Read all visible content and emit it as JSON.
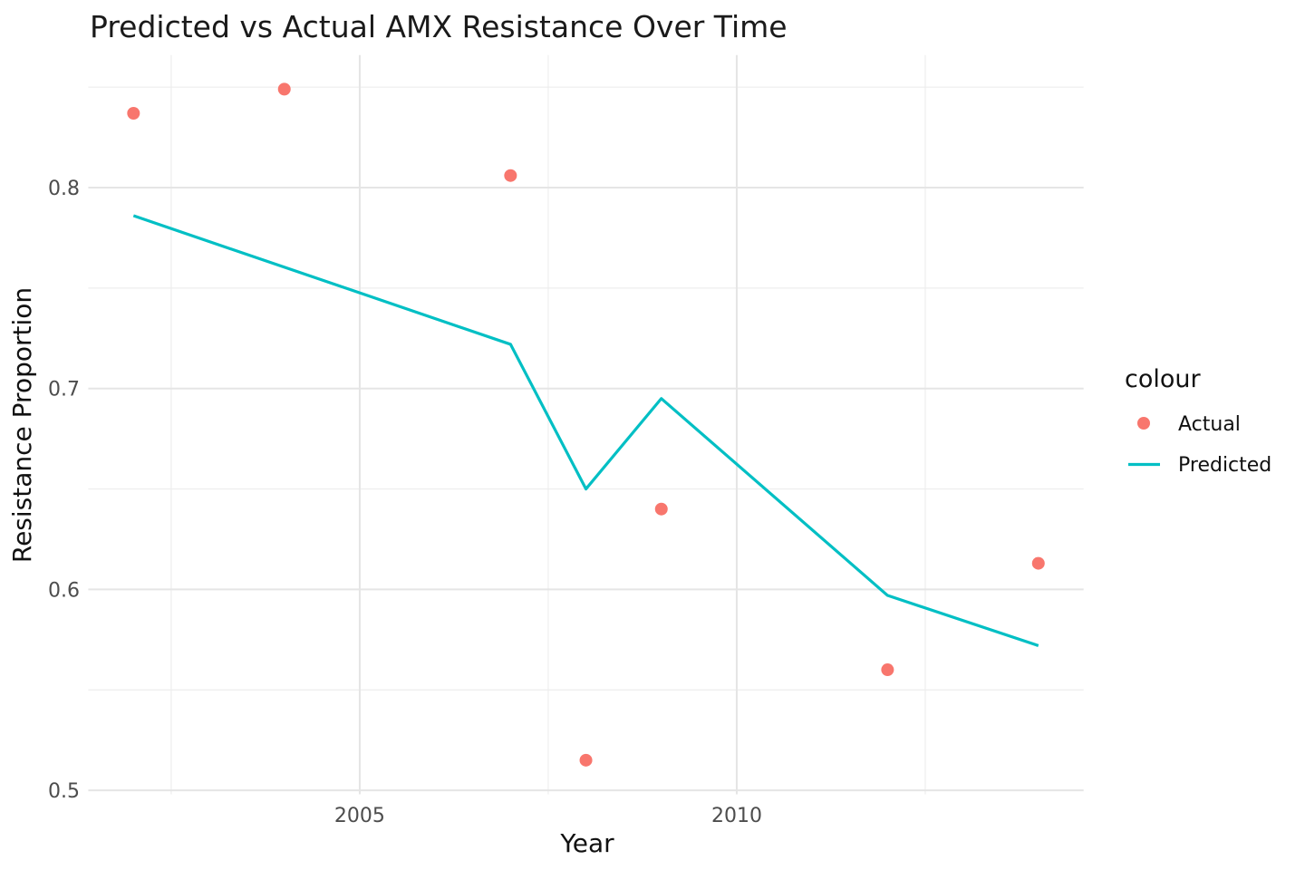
{
  "page": {
    "background": "#ffffff"
  },
  "chart_data": {
    "type": "scatter",
    "title": "Predicted vs Actual AMX Resistance Over Time",
    "xlabel": "Year",
    "ylabel": "Resistance Proportion",
    "grid": "on",
    "x_axis": {
      "lim": [
        2001.4,
        2014.6
      ],
      "ticks": [
        2005,
        2010
      ],
      "tick_labels": [
        "2005",
        "2010"
      ],
      "minor_ticks": [
        2002.5,
        2007.5,
        2012.5
      ]
    },
    "y_axis": {
      "lim": [
        0.498,
        0.866
      ],
      "ticks": [
        0.5,
        0.6,
        0.7,
        0.8
      ],
      "tick_labels": [
        "0.5",
        "0.6",
        "0.7",
        "0.8"
      ],
      "minor_ticks": [
        0.55,
        0.65,
        0.75,
        0.85
      ]
    },
    "series": [
      {
        "name": "Actual",
        "type": "scatter",
        "color": "#F8766D",
        "x": [
          2002,
          2004,
          2007,
          2008,
          2009,
          2012,
          2014
        ],
        "y": [
          0.837,
          0.849,
          0.806,
          0.515,
          0.64,
          0.56,
          0.613
        ]
      },
      {
        "name": "Predicted",
        "type": "line",
        "color": "#00BFC4",
        "x": [
          2002,
          2007,
          2008,
          2009,
          2012,
          2014
        ],
        "y": [
          0.786,
          0.722,
          0.65,
          0.695,
          0.597,
          0.572
        ]
      }
    ],
    "legend": {
      "title": "colour",
      "position": "right",
      "entries": [
        {
          "label": "Actual",
          "marker": "point",
          "color": "#F8766D"
        },
        {
          "label": "Predicted",
          "marker": "line",
          "color": "#00BFC4"
        }
      ]
    }
  },
  "colors": {
    "actual": "#F8766D",
    "predicted": "#00BFC4",
    "grid_major": "#e5e5e5",
    "grid_minor": "#ededed",
    "tick_text": "#4d4d4d",
    "title_text": "#1a1a1a"
  }
}
